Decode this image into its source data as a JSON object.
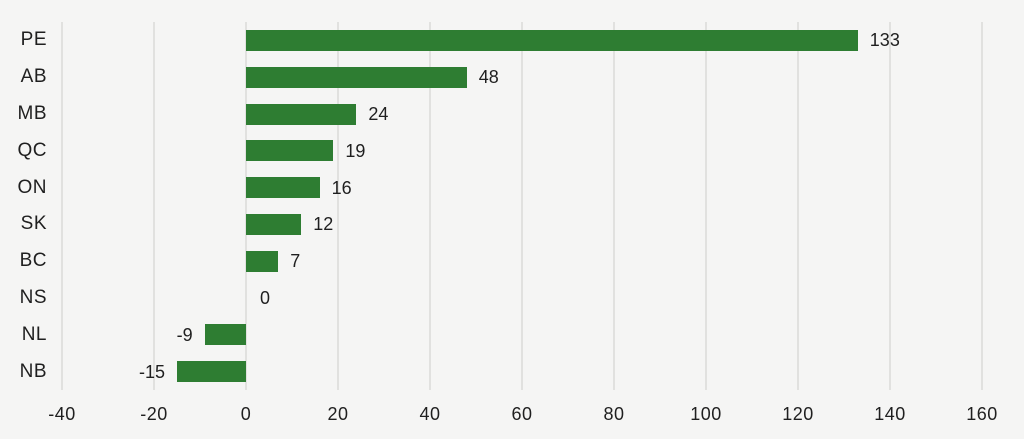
{
  "chart_data": {
    "type": "bar",
    "orientation": "horizontal",
    "title": "",
    "xlabel": "",
    "ylabel": "",
    "categories": [
      "PE",
      "AB",
      "MB",
      "QC",
      "ON",
      "SK",
      "BC",
      "NS",
      "NL",
      "NB"
    ],
    "values": [
      133,
      48,
      24,
      19,
      16,
      12,
      7,
      0,
      -9,
      -15
    ],
    "value_labels": [
      "133",
      "48",
      "24",
      "19",
      "16",
      "12",
      "7",
      "0",
      "-9",
      "-15"
    ],
    "xlim": [
      -40,
      160
    ],
    "x_ticks": [
      -40,
      -20,
      0,
      20,
      40,
      60,
      80,
      100,
      120,
      140,
      160
    ],
    "x_tick_labels": [
      "-40",
      "-20",
      "0",
      "20",
      "40",
      "60",
      "80",
      "100",
      "120",
      "140",
      "160"
    ],
    "grid": "vertical-only",
    "legend": "none",
    "colors": {
      "bar": "#2e7d32",
      "background": "#f5f5f4",
      "gridline": "#e1e1df",
      "text": "#1f1f1f"
    }
  }
}
